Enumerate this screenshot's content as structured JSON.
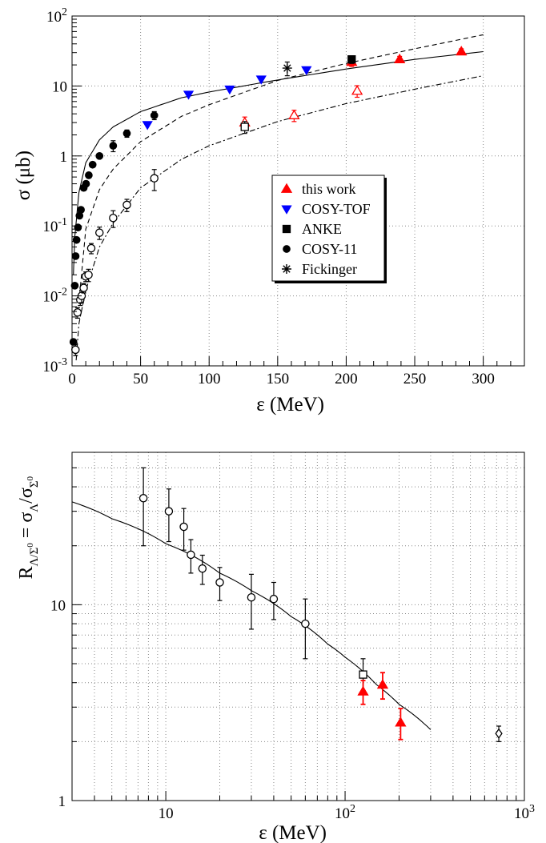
{
  "chart_data": [
    {
      "type": "scatter",
      "xlabel": "ε (MeV)",
      "ylabel": "σ (μb)",
      "xlim": [
        0,
        330
      ],
      "ylim": [
        0.001,
        100
      ],
      "y_scale": "log",
      "grid": true,
      "legend_position": "center-right",
      "x_ticks": [
        "0",
        "50",
        "100",
        "150",
        "200",
        "250",
        "300"
      ],
      "y_ticks": [
        "10⁻³",
        "10⁻²",
        "10⁻¹",
        "1",
        "10",
        "10²"
      ],
      "legend": [
        {
          "label": "this work",
          "marker": "triangle-up",
          "color": "#ff0000"
        },
        {
          "label": "COSY-TOF",
          "marker": "triangle-down",
          "color": "#0000ff"
        },
        {
          "label": "ANKE",
          "marker": "square",
          "color": "#000000"
        },
        {
          "label": "COSY-11",
          "marker": "circle",
          "color": "#000000"
        },
        {
          "label": "Fickinger",
          "marker": "star",
          "color": "#000000"
        }
      ],
      "series": [
        {
          "marker": "triangle-up",
          "color": "#ff0000",
          "fill": true,
          "x": [
            204,
            239,
            284
          ],
          "y": [
            22,
            24,
            31
          ],
          "err": [
            3,
            2.5,
            3
          ]
        },
        {
          "marker": "triangle-up",
          "color": "#ff0000",
          "fill": false,
          "x": [
            126,
            162,
            208
          ],
          "y": [
            3.0,
            3.8,
            8.5
          ],
          "err": [
            0.6,
            0.7,
            1.6
          ]
        },
        {
          "marker": "triangle-down",
          "color": "#0000ff",
          "fill": true,
          "x": [
            55,
            85,
            115,
            138,
            171
          ],
          "y": [
            2.8,
            7.6,
            9.0,
            12.5,
            17
          ],
          "err": [
            0,
            0,
            0,
            0,
            0
          ]
        },
        {
          "marker": "square",
          "color": "#000000",
          "fill": true,
          "x": [
            204
          ],
          "y": [
            24
          ],
          "err": [
            3
          ]
        },
        {
          "marker": "square",
          "color": "#000000",
          "fill": false,
          "x": [
            126
          ],
          "y": [
            2.6
          ],
          "err": [
            0.5
          ]
        },
        {
          "marker": "circle",
          "color": "#000000",
          "fill": true,
          "x": [
            1,
            2,
            2.6,
            3.3,
            4.3,
            5.4,
            6.5,
            8.5,
            10.2,
            12.2,
            15,
            20,
            30,
            40,
            60
          ],
          "y": [
            0.0022,
            0.014,
            0.037,
            0.063,
            0.095,
            0.14,
            0.17,
            0.35,
            0.4,
            0.53,
            0.75,
            1.0,
            1.4,
            2.1,
            3.8
          ],
          "err": [
            0,
            0,
            0,
            0,
            0,
            0,
            0,
            0,
            0,
            0,
            0,
            0,
            0.25,
            0.25,
            0.5
          ]
        },
        {
          "marker": "circle",
          "color": "#000000",
          "fill": false,
          "x": [
            2.5,
            4,
            6,
            7,
            8.5,
            10,
            12,
            14,
            20,
            30,
            40,
            60
          ],
          "y": [
            0.0017,
            0.0058,
            0.0088,
            0.01,
            0.013,
            0.019,
            0.02,
            0.048,
            0.08,
            0.13,
            0.2,
            0.48
          ],
          "err": [
            0.0003,
            0.001,
            0.0015,
            0.002,
            0.002,
            0.003,
            0.004,
            0.008,
            0.016,
            0.035,
            0.04,
            0.16
          ]
        },
        {
          "marker": "star",
          "color": "#000000",
          "fill": false,
          "x": [
            157
          ],
          "y": [
            18
          ],
          "err": [
            4
          ]
        }
      ],
      "curves": [
        {
          "style": "solid",
          "x": [
            1,
            2,
            5,
            10,
            20,
            30,
            50,
            80,
            100,
            150,
            200,
            250,
            300
          ],
          "y": [
            0.02,
            0.07,
            0.3,
            0.8,
            1.7,
            2.6,
            4.3,
            6.8,
            8.2,
            12.2,
            17.5,
            24,
            31
          ]
        },
        {
          "style": "dashed",
          "x": [
            5,
            10,
            20,
            30,
            50,
            80,
            100,
            150,
            200,
            250,
            300
          ],
          "y": [
            0.008,
            0.09,
            0.33,
            0.65,
            1.6,
            3.7,
            5.4,
            12,
            21,
            34,
            54
          ]
        },
        {
          "style": "dashdot",
          "x": [
            3,
            5,
            10,
            20,
            30,
            50,
            80,
            100,
            150,
            200,
            250,
            300
          ],
          "y": [
            0.0012,
            0.004,
            0.012,
            0.05,
            0.11,
            0.35,
            0.9,
            1.4,
            3.1,
            5.6,
            9,
            14
          ]
        }
      ]
    },
    {
      "type": "scatter",
      "xlabel": "ε (MeV)",
      "ylabel": "R_Λ/Σ⁰ = σ_Λ/σ_Σ⁰",
      "ylabel_parts": {
        "R": "R",
        "Rsub": "Λ/Σ",
        "Rsub0": "0",
        "eq": " = σ",
        "s1": "Λ",
        "slash": "/σ",
        "s2": "Σ",
        "s2sup": "0"
      },
      "xlim": [
        3,
        1000
      ],
      "ylim": [
        1,
        60
      ],
      "x_scale": "log",
      "y_scale": "log",
      "grid": true,
      "x_ticks": [
        "10",
        "10²",
        "10³"
      ],
      "y_ticks": [
        "1",
        "10"
      ],
      "series": [
        {
          "marker": "circle",
          "color": "#000000",
          "fill": false,
          "x": [
            7.5,
            10.4,
            12.6,
            13.8,
            16,
            20,
            30,
            40,
            60
          ],
          "y": [
            35,
            30,
            25,
            18,
            15.3,
            13,
            10.9,
            10.7,
            8
          ],
          "err": [
            15,
            9,
            6,
            3.5,
            2.6,
            2.5,
            3.4,
            2.3,
            2.7
          ]
        },
        {
          "marker": "square",
          "color": "#000000",
          "fill": false,
          "x": [
            126
          ],
          "y": [
            4.4
          ],
          "err": [
            0.9
          ]
        },
        {
          "marker": "triangle-up",
          "color": "#ff0000",
          "fill": true,
          "x": [
            126,
            162,
            204
          ],
          "y": [
            3.6,
            3.9,
            2.5
          ],
          "err": [
            0.5,
            0.6,
            0.45
          ]
        },
        {
          "marker": "diamond",
          "color": "#000000",
          "fill": false,
          "x": [
            720
          ],
          "y": [
            2.2
          ],
          "err": [
            0.2
          ]
        }
      ],
      "curves": [
        {
          "style": "solid",
          "x": [
            3,
            5,
            10,
            20,
            30,
            50,
            80,
            100,
            150,
            200,
            300
          ],
          "y": [
            33.5,
            27.5,
            20.5,
            14.5,
            11.8,
            8.7,
            6.3,
            5.4,
            3.9,
            3.1,
            2.3
          ]
        }
      ]
    }
  ]
}
